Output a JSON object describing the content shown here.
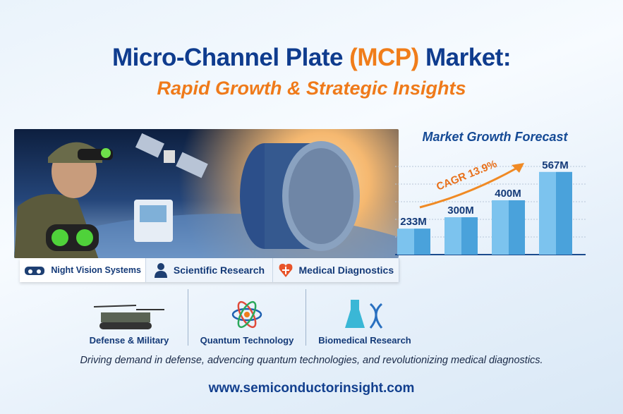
{
  "header": {
    "title_part1": "Micro-Channel Plate ",
    "title_highlight": "(MCP)",
    "title_part2": " Market:",
    "subtitle": "Rapid Growth & Strategic Insights"
  },
  "applications_primary": [
    {
      "label": "Night Vision Systems",
      "icon": "night-vision-goggles-icon"
    },
    {
      "label": "Scientific Research",
      "icon": "scientist-icon"
    },
    {
      "label": "Medical Diagnostics",
      "icon": "heart-cross-icon"
    }
  ],
  "applications_secondary": [
    {
      "label": "Defense & Military",
      "icon": "military-vehicle-icon"
    },
    {
      "label": "Quantum Technology",
      "icon": "atom-icon"
    },
    {
      "label": "Biomedical Research",
      "icon": "flask-dna-icon"
    }
  ],
  "tagline": "Driving demand in defense, advencing quantum technologies, and revolutionizing medical diagnostics.",
  "website": "www.semiconductorinsight.com",
  "colors": {
    "navy": "#0f3c8e",
    "orange": "#f07d1a",
    "bar": "#5ab0e6"
  },
  "chart_data": {
    "type": "bar",
    "title": "Market Growth Forecast",
    "values": [
      233,
      300,
      400,
      567
    ],
    "data_labels": [
      "233M",
      "300M",
      "400M",
      "567M"
    ],
    "annotation": "CAGR 13.9%",
    "grid": true,
    "ylim": [
      80,
      620
    ]
  }
}
